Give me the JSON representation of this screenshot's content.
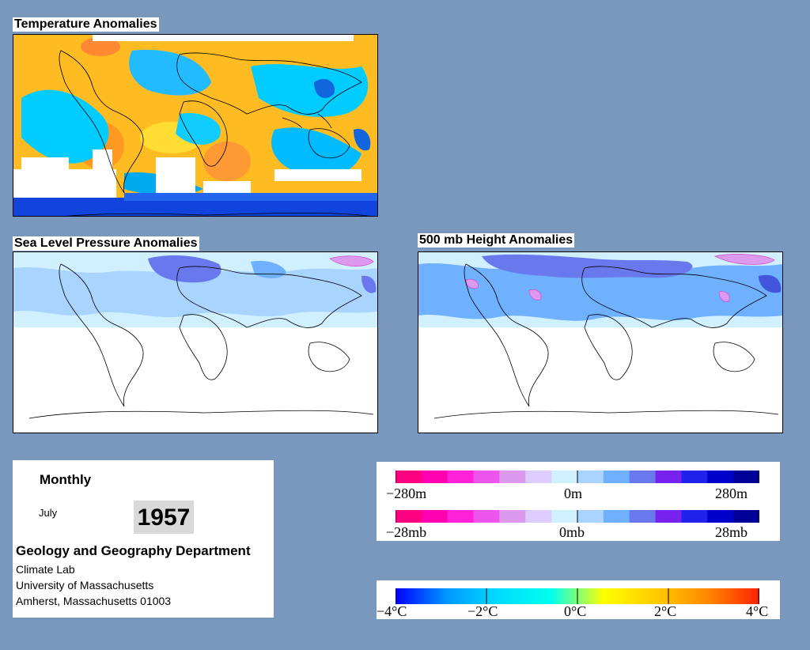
{
  "panels": {
    "temperature": {
      "title": "Temperature Anomalies"
    },
    "slp": {
      "title": "Sea Level Pressure Anomalies"
    },
    "height500": {
      "title": "500 mb Height Anomalies"
    }
  },
  "info": {
    "frequency": "Monthly",
    "month": "July",
    "year": "1957",
    "department": "Geology and Geography Department",
    "lines": [
      "Climate Lab",
      "University of Massachusetts",
      "Amherst, Massachusetts 01003"
    ]
  },
  "legend_height": {
    "colors": [
      "#ff0080",
      "#ff00b0",
      "#ff22d8",
      "#ee55ee",
      "#dd99ee",
      "#ddccff",
      "#d0f0ff",
      "#a8d4ff",
      "#6fb0ff",
      "#6a78ee",
      "#7722ee",
      "#2222ee",
      "#0000cc",
      "#000099"
    ],
    "labels": [
      "−280m",
      "0m",
      "280m"
    ]
  },
  "legend_pressure": {
    "colors": [
      "#ff0080",
      "#ff00b0",
      "#ff22d8",
      "#ee55ee",
      "#dd99ee",
      "#ddccff",
      "#d0f0ff",
      "#a8d4ff",
      "#6fb0ff",
      "#6a78ee",
      "#7722ee",
      "#2222ee",
      "#0000cc",
      "#000099"
    ],
    "labels": [
      "−28mb",
      "0mb",
      "28mb"
    ]
  },
  "legend_temperature": {
    "gradient": [
      "#0000ff",
      "#0099ff",
      "#00ddff",
      "#00ffee",
      "#ffff00",
      "#ffcc00",
      "#ff8800",
      "#ff2200"
    ],
    "labels": [
      "−4°C",
      "−2°C",
      "0°C",
      "2°C",
      "4°C"
    ]
  }
}
